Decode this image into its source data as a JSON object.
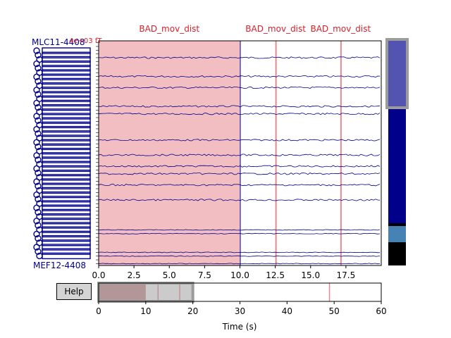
{
  "annotations": [
    {
      "label": "BAD_mov_dist",
      "onset": 0.0,
      "offset": 10.0
    },
    {
      "label": "BAD_mov_dist",
      "onset": 12.5,
      "offset": 12.55
    },
    {
      "label": "BAD_mov_dist",
      "onset": 17.1,
      "offset": 17.15
    }
  ],
  "main_axis": {
    "xlim": [
      0,
      20
    ],
    "ticks": [
      0,
      2.5,
      5,
      7.5,
      10,
      12.5,
      15,
      17.5
    ],
    "tick_labels": [
      "0.0",
      "2.5",
      "5.0",
      "7.5",
      "10.0",
      "12.5",
      "15.0",
      "17.5"
    ]
  },
  "channels": {
    "top_label": "MLC11-4408",
    "bottom_label": "MEF12-4408",
    "visible_count": 60,
    "color": "#00008b",
    "scale_text": "4e+03 fT"
  },
  "overview": {
    "xlim": [
      0,
      60
    ],
    "ticks": [
      0,
      10,
      20,
      30,
      40,
      50,
      60
    ],
    "tick_labels": [
      "0",
      "10",
      "20",
      "30",
      "40",
      "50",
      "60"
    ],
    "xlabel": "Time (s)",
    "view_window": [
      0,
      20
    ],
    "bad_spans": [
      [
        0,
        10
      ],
      [
        12.5,
        12.55
      ],
      [
        17.1,
        17.15
      ],
      [
        48.9,
        49.0
      ]
    ]
  },
  "help_button": {
    "label": "Help"
  },
  "colors": {
    "bad_fill": "#f2bec2",
    "bad_line": "#e38a8f",
    "annotation_text": "#dc1e2a",
    "trace": "#00008b",
    "scroll_dark": "#00008b",
    "scroll_steel": "#4682b4",
    "scroll_black": "#000000"
  }
}
